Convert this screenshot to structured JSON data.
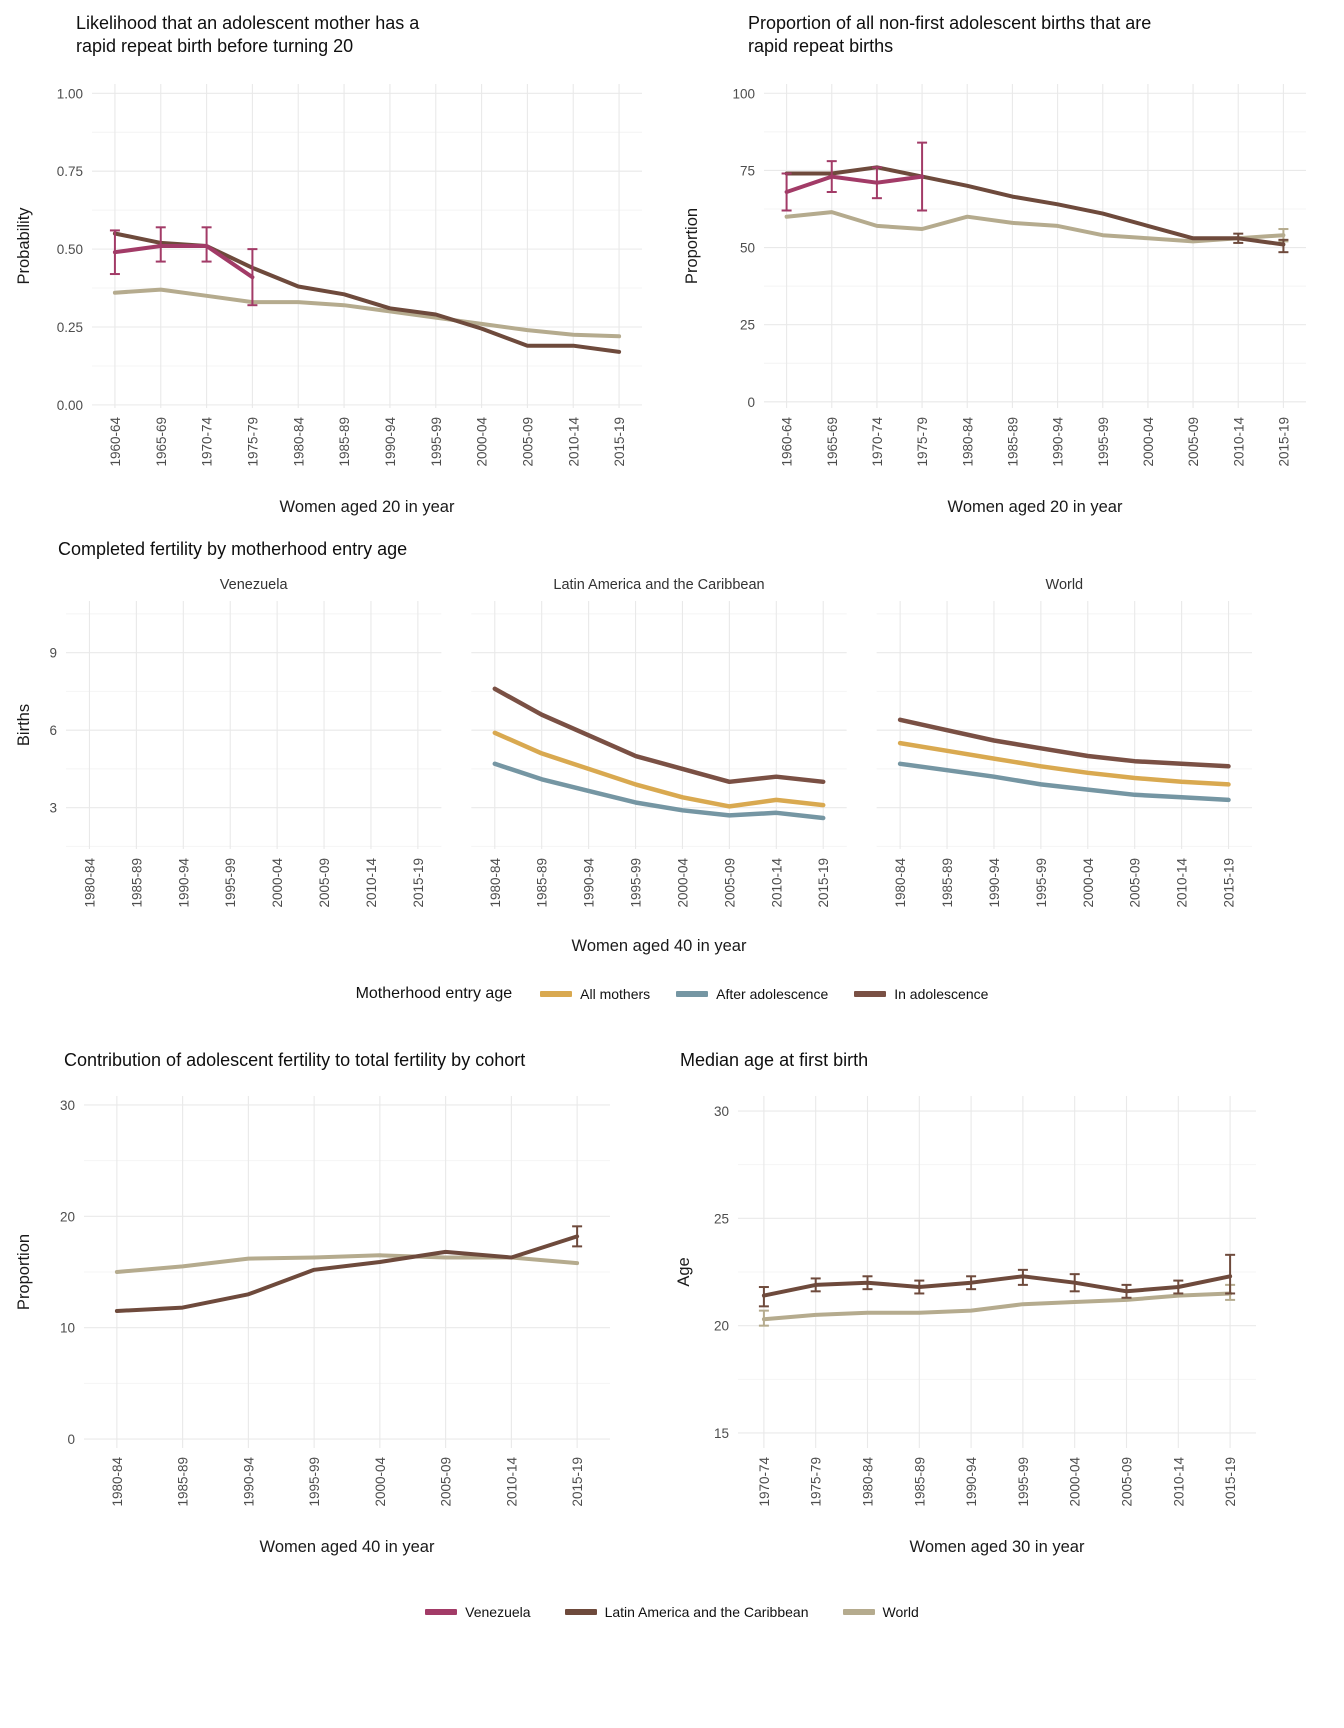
{
  "colors": {
    "venezuela": "#a23b67",
    "lac": "#6e4a3c",
    "world": "#b5ab8e",
    "all_mothers": "#d9a950",
    "after_adolescence": "#7596a3",
    "in_adolescence": "#7a5044",
    "grid_major": "#e9e9e9",
    "grid_minor": "#f4f4f4",
    "tick_text": "#4d4d4d",
    "axis_title_text": "#1a1a1a",
    "facet_text": "#333333"
  },
  "legend_middle": {
    "title": "Motherhood entry age",
    "items": [
      {
        "label": "All mothers",
        "color": "all_mothers"
      },
      {
        "label": "After adolescence",
        "color": "after_adolescence"
      },
      {
        "label": "In adolescence",
        "color": "in_adolescence"
      }
    ]
  },
  "legend_bottom": {
    "items": [
      {
        "label": "Venezuela",
        "color": "venezuela"
      },
      {
        "label": "Latin America and the Caribbean",
        "color": "lac"
      },
      {
        "label": "World",
        "color": "world"
      }
    ]
  },
  "chart_data": [
    {
      "id": "rapid-repeat-likelihood",
      "type": "line",
      "title": "Likelihood that an adolescent mother has a\nrapid repeat birth before turning 20",
      "xlabel": "Women aged 20 in year",
      "ylabel": "Probability",
      "categories": [
        "1960-64",
        "1965-69",
        "1970-74",
        "1975-79",
        "1980-84",
        "1985-89",
        "1990-94",
        "1995-99",
        "2000-04",
        "2005-09",
        "2010-14",
        "2015-19"
      ],
      "ylim": [
        -0.01,
        1.03
      ],
      "yticks": [
        0,
        0.25,
        0.5,
        0.75,
        1
      ],
      "ytick_labels": [
        "0.00",
        "0.25",
        "0.50",
        "0.75",
        "1.00"
      ],
      "grid": true,
      "legend_position": "none",
      "series": [
        {
          "name": "World",
          "color": "world",
          "values": [
            0.36,
            0.37,
            0.35,
            0.33,
            0.33,
            0.32,
            0.3,
            0.28,
            0.26,
            0.24,
            0.225,
            0.22
          ]
        },
        {
          "name": "Latin America and the Caribbean",
          "color": "lac",
          "values": [
            0.55,
            0.52,
            0.51,
            0.44,
            0.38,
            0.355,
            0.31,
            0.29,
            0.245,
            0.19,
            0.19,
            0.17
          ]
        },
        {
          "name": "Venezuela",
          "color": "venezuela",
          "values": [
            0.49,
            0.51,
            0.51,
            0.41,
            null,
            null,
            null,
            null,
            null,
            null,
            null,
            null
          ],
          "ci": [
            [
              0.42,
              0.56
            ],
            [
              0.46,
              0.57
            ],
            [
              0.46,
              0.57
            ],
            [
              0.32,
              0.5
            ],
            null,
            null,
            null,
            null,
            null,
            null,
            null,
            null
          ]
        }
      ]
    },
    {
      "id": "rapid-repeat-proportion",
      "type": "line",
      "title": "Proportion of all non-first adolescent births that are\nrapid repeat births",
      "xlabel": "Women aged 20 in year",
      "ylabel": "Proportion",
      "categories": [
        "1960-64",
        "1965-69",
        "1970-74",
        "1975-79",
        "1980-84",
        "1985-89",
        "1990-94",
        "1995-99",
        "2000-04",
        "2005-09",
        "2010-14",
        "2015-19"
      ],
      "ylim": [
        -2,
        103
      ],
      "yticks": [
        0,
        25,
        50,
        75,
        100
      ],
      "ytick_labels": [
        "0",
        "25",
        "50",
        "75",
        "100"
      ],
      "grid": true,
      "legend_position": "none",
      "series": [
        {
          "name": "World",
          "color": "world",
          "values": [
            60,
            61.5,
            57,
            56,
            60,
            58,
            57,
            54,
            53,
            52,
            53,
            54
          ],
          "ci": [
            null,
            null,
            null,
            null,
            null,
            null,
            null,
            null,
            null,
            null,
            null,
            [
              52,
              56
            ]
          ]
        },
        {
          "name": "Latin America and the Caribbean",
          "color": "lac",
          "values": [
            74,
            74,
            76,
            73,
            70,
            66.5,
            64,
            61,
            57,
            53,
            53,
            51
          ],
          "ci": [
            null,
            null,
            null,
            null,
            null,
            null,
            null,
            null,
            null,
            null,
            [
              51.5,
              54.5
            ],
            [
              48.5,
              52.5
            ]
          ]
        },
        {
          "name": "Venezuela",
          "color": "venezuela",
          "values": [
            68,
            73,
            71,
            73,
            null,
            null,
            null,
            null,
            null,
            null,
            null,
            null
          ],
          "ci": [
            [
              62,
              74
            ],
            [
              68,
              78
            ],
            [
              66,
              76
            ],
            [
              62,
              84
            ],
            null,
            null,
            null,
            null,
            null,
            null,
            null,
            null
          ]
        }
      ]
    },
    {
      "id": "completed-fertility",
      "type": "line",
      "title": "Completed fertility by motherhood entry age",
      "xlabel": "Women aged 40 in year",
      "ylabel": "Births",
      "categories": [
        "1980-84",
        "1985-89",
        "1990-94",
        "1995-99",
        "2000-04",
        "2005-09",
        "2010-14",
        "2015-19"
      ],
      "ylim": [
        1.4,
        11
      ],
      "yticks": [
        3,
        6,
        9
      ],
      "ytick_labels": [
        "3",
        "6",
        "9"
      ],
      "grid": true,
      "legend_position": "bottom",
      "facets": [
        {
          "title": "Venezuela",
          "series": []
        },
        {
          "title": "Latin America and the Caribbean",
          "series": [
            {
              "name": "In adolescence",
              "color": "in_adolescence",
              "values": [
                7.6,
                6.6,
                5.8,
                5.0,
                4.5,
                4.0,
                4.2,
                4.0
              ]
            },
            {
              "name": "All mothers",
              "color": "all_mothers",
              "values": [
                5.9,
                5.1,
                4.5,
                3.9,
                3.4,
                3.05,
                3.3,
                3.1
              ]
            },
            {
              "name": "After adolescence",
              "color": "after_adolescence",
              "values": [
                4.7,
                4.1,
                3.65,
                3.2,
                2.9,
                2.7,
                2.8,
                2.6
              ]
            }
          ]
        },
        {
          "title": "World",
          "series": [
            {
              "name": "In adolescence",
              "color": "in_adolescence",
              "values": [
                6.4,
                6.0,
                5.6,
                5.3,
                5.0,
                4.8,
                4.7,
                4.6
              ]
            },
            {
              "name": "All mothers",
              "color": "all_mothers",
              "values": [
                5.5,
                5.2,
                4.9,
                4.6,
                4.35,
                4.15,
                4.0,
                3.9
              ]
            },
            {
              "name": "After adolescence",
              "color": "after_adolescence",
              "values": [
                4.7,
                4.45,
                4.2,
                3.9,
                3.7,
                3.5,
                3.4,
                3.3
              ]
            }
          ]
        }
      ]
    },
    {
      "id": "adolescent-contribution",
      "type": "line",
      "title": "Contribution of adolescent fertility to total fertility by cohort",
      "xlabel": "Women aged 40 in year",
      "ylabel": "Proportion",
      "categories": [
        "1980-84",
        "1985-89",
        "1990-94",
        "1995-99",
        "2000-04",
        "2005-09",
        "2010-14",
        "2015-19"
      ],
      "ylim": [
        -0.8,
        30.8
      ],
      "yticks": [
        0,
        10,
        20,
        30
      ],
      "ytick_labels": [
        "0",
        "10",
        "20",
        "30"
      ],
      "grid": true,
      "legend_position": "none",
      "series": [
        {
          "name": "World",
          "color": "world",
          "values": [
            15.0,
            15.5,
            16.2,
            16.3,
            16.5,
            16.3,
            16.3,
            15.8
          ]
        },
        {
          "name": "Latin America and the Caribbean",
          "color": "lac",
          "values": [
            11.5,
            11.8,
            13.0,
            15.2,
            15.9,
            16.8,
            16.3,
            18.2
          ],
          "ci": [
            null,
            null,
            null,
            null,
            null,
            null,
            null,
            [
              17.3,
              19.1
            ]
          ]
        }
      ]
    },
    {
      "id": "median-age-first-birth",
      "type": "line",
      "title": "Median age at first birth",
      "xlabel": "Women aged 30 in year",
      "ylabel": "Age",
      "categories": [
        "1970-74",
        "1975-79",
        "1980-84",
        "1985-89",
        "1990-94",
        "1995-99",
        "2000-04",
        "2005-09",
        "2010-14",
        "2015-19"
      ],
      "ylim": [
        14.3,
        30.7
      ],
      "yticks": [
        15,
        20,
        25,
        30
      ],
      "ytick_labels": [
        "15",
        "20",
        "25",
        "30"
      ],
      "grid": true,
      "legend_position": "none",
      "series": [
        {
          "name": "World",
          "color": "world",
          "values": [
            20.3,
            20.5,
            20.6,
            20.6,
            20.7,
            21.0,
            21.1,
            21.2,
            21.4,
            21.5
          ],
          "ci": [
            [
              20.0,
              20.7
            ],
            null,
            null,
            null,
            null,
            null,
            null,
            null,
            null,
            [
              21.2,
              21.9
            ]
          ]
        },
        {
          "name": "Latin America and the Caribbean",
          "color": "lac",
          "values": [
            21.4,
            21.9,
            22.0,
            21.8,
            22.0,
            22.3,
            22.0,
            21.6,
            21.8,
            22.3
          ],
          "ci": [
            [
              20.9,
              21.8
            ],
            [
              21.6,
              22.2
            ],
            [
              21.7,
              22.3
            ],
            [
              21.5,
              22.1
            ],
            [
              21.7,
              22.3
            ],
            [
              21.9,
              22.6
            ],
            [
              21.6,
              22.4
            ],
            [
              21.3,
              21.9
            ],
            [
              21.5,
              22.1
            ],
            [
              21.5,
              23.3
            ]
          ]
        }
      ]
    }
  ]
}
